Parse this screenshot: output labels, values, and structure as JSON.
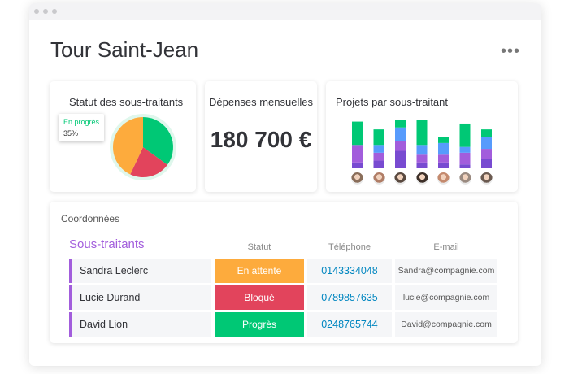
{
  "page": {
    "title": "Tour Saint-Jean",
    "menu_icon": "more-horizontal-icon"
  },
  "cards": {
    "statut": {
      "title": "Statut des sous-traitants",
      "tooltip_label": "En progrès",
      "tooltip_value": "35%"
    },
    "depenses": {
      "title": "Dépenses mensuelles",
      "amount": "180 700 €"
    },
    "projets": {
      "title": "Projets par sous-traitant"
    }
  },
  "chart_data": [
    {
      "type": "pie",
      "title": "Statut des sous-traitants",
      "slices": [
        {
          "label": "En progrès",
          "value": 35,
          "color": "#00c875"
        },
        {
          "label": "Bloqué",
          "value": 22,
          "color": "#e2445c"
        },
        {
          "label": "En attente",
          "value": 43,
          "color": "#fdab3d"
        }
      ]
    },
    {
      "type": "bar",
      "stacked": true,
      "title": "Projets par sous-traitant",
      "categories": [
        "1",
        "2",
        "3",
        "4",
        "5",
        "6",
        "7"
      ],
      "series": [
        {
          "color": "#784bd1",
          "values": [
            3,
            4,
            9,
            3,
            3,
            2,
            5
          ]
        },
        {
          "color": "#a25ddc",
          "values": [
            9,
            4,
            5,
            4,
            4,
            6,
            5
          ]
        },
        {
          "color": "#579bfc",
          "values": [
            0,
            4,
            7,
            5,
            6,
            3,
            6
          ]
        },
        {
          "color": "#00c875",
          "values": [
            12,
            8,
            4,
            13,
            3,
            12,
            4
          ]
        }
      ],
      "ylim": [
        0,
        28
      ]
    }
  ],
  "coordonnees": {
    "title": "Coordonnées",
    "group": "Sous-traitants",
    "columns": {
      "statut": "Statut",
      "telephone": "Téléphone",
      "email": "E-mail"
    },
    "rows": [
      {
        "name": "Sandra Leclerc",
        "status": "En attente",
        "status_color": "#fdab3d",
        "phone": "0143334048",
        "email": "Sandra@compagnie.com"
      },
      {
        "name": "Lucie Durand",
        "status": "Bloqué",
        "status_color": "#e2445c",
        "phone": "0789857635",
        "email": "lucie@compagnie.com"
      },
      {
        "name": "David Lion",
        "status": "Progrès",
        "status_color": "#00c875",
        "phone": "0248765744",
        "email": "David@compagnie.com"
      }
    ]
  }
}
